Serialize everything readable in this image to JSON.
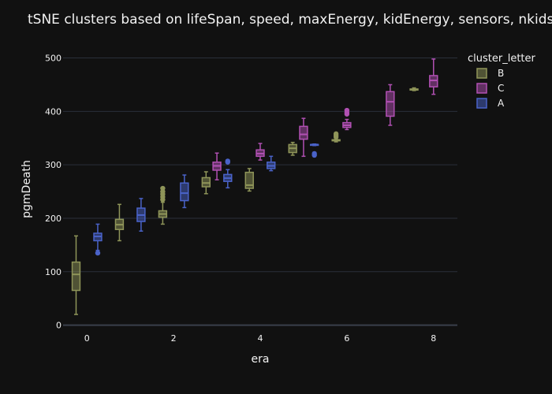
{
  "chart_data": {
    "type": "box",
    "title": "tSNE clusters based on lifeSpan, speed, maxEnergy, kidEnergy, sensors, nkids",
    "xlabel": "era",
    "ylabel": "pgmDeath",
    "xlim": [
      -0.55,
      8.55
    ],
    "ylim": [
      -5,
      520
    ],
    "x_ticks": [
      0,
      2,
      4,
      6,
      8
    ],
    "y_ticks": [
      0,
      100,
      200,
      300,
      400,
      500
    ],
    "grid": true,
    "legend": {
      "title": "cluster_letter",
      "placement": "right-top",
      "entries": [
        {
          "label": "B",
          "color": "#8f9559"
        },
        {
          "label": "C",
          "color": "#b150b3"
        },
        {
          "label": "A",
          "color": "#4a63c9"
        }
      ]
    },
    "series": [
      {
        "name": "B",
        "color": "#8f9559",
        "boxes": [
          {
            "x": 0,
            "min": 20,
            "q1": 65,
            "median": 95,
            "q3": 118,
            "max": 167,
            "outliers": []
          },
          {
            "x": 1,
            "min": 158,
            "q1": 179,
            "median": 188,
            "q3": 198,
            "max": 226,
            "outliers": []
          },
          {
            "x": 2,
            "min": 189,
            "q1": 202,
            "median": 208,
            "q3": 214,
            "max": 230,
            "outliers": [
              235,
              240,
              245,
              250,
              256
            ]
          },
          {
            "x": 3,
            "min": 246,
            "q1": 259,
            "median": 266,
            "q3": 276,
            "max": 287,
            "outliers": []
          },
          {
            "x": 4,
            "min": 251,
            "q1": 256,
            "median": 262,
            "q3": 286,
            "max": 293,
            "outliers": []
          },
          {
            "x": 5,
            "min": 318,
            "q1": 323,
            "median": 331,
            "q3": 338,
            "max": 342,
            "outliers": []
          },
          {
            "x": 6,
            "min": 343,
            "q1": 345,
            "median": 346,
            "q3": 347,
            "max": 348,
            "outliers": [
              352,
              355,
              358
            ]
          },
          {
            "x": 7.8,
            "min": 439,
            "q1": 440,
            "median": 441,
            "q3": 442,
            "max": 444,
            "outliers": []
          }
        ]
      },
      {
        "name": "C",
        "color": "#b150b3",
        "boxes": [
          {
            "x": 3,
            "min": 272,
            "q1": 290,
            "median": 298,
            "q3": 305,
            "max": 322,
            "outliers": []
          },
          {
            "x": 4,
            "min": 309,
            "q1": 316,
            "median": 321,
            "q3": 328,
            "max": 340,
            "outliers": []
          },
          {
            "x": 5,
            "min": 316,
            "q1": 348,
            "median": 357,
            "q3": 372,
            "max": 387,
            "outliers": []
          },
          {
            "x": 6,
            "min": 366,
            "q1": 370,
            "median": 374,
            "q3": 379,
            "max": 385,
            "outliers": [
              395,
              398,
              402
            ]
          },
          {
            "x": 7,
            "min": 374,
            "q1": 391,
            "median": 418,
            "q3": 437,
            "max": 450,
            "outliers": []
          },
          {
            "x": 8,
            "min": 432,
            "q1": 446,
            "median": 458,
            "q3": 467,
            "max": 498,
            "outliers": []
          }
        ]
      },
      {
        "name": "A",
        "color": "#4a63c9",
        "boxes": [
          {
            "x": 0,
            "min": 140,
            "q1": 158,
            "median": 166,
            "q3": 172,
            "max": 189,
            "outliers": [
              135
            ]
          },
          {
            "x": 1,
            "min": 176,
            "q1": 194,
            "median": 206,
            "q3": 219,
            "max": 237,
            "outliers": []
          },
          {
            "x": 2,
            "min": 220,
            "q1": 233,
            "median": 247,
            "q3": 266,
            "max": 281,
            "outliers": []
          },
          {
            "x": 3,
            "min": 257,
            "q1": 269,
            "median": 275,
            "q3": 282,
            "max": 291,
            "outliers": [
              305,
              307
            ]
          },
          {
            "x": 4,
            "min": 289,
            "q1": 293,
            "median": 298,
            "q3": 305,
            "max": 316,
            "outliers": []
          },
          {
            "x": 5,
            "min": 336,
            "q1": 337,
            "median": 338,
            "q3": 338,
            "max": 339,
            "outliers": [
              318,
              321
            ]
          }
        ]
      }
    ]
  }
}
